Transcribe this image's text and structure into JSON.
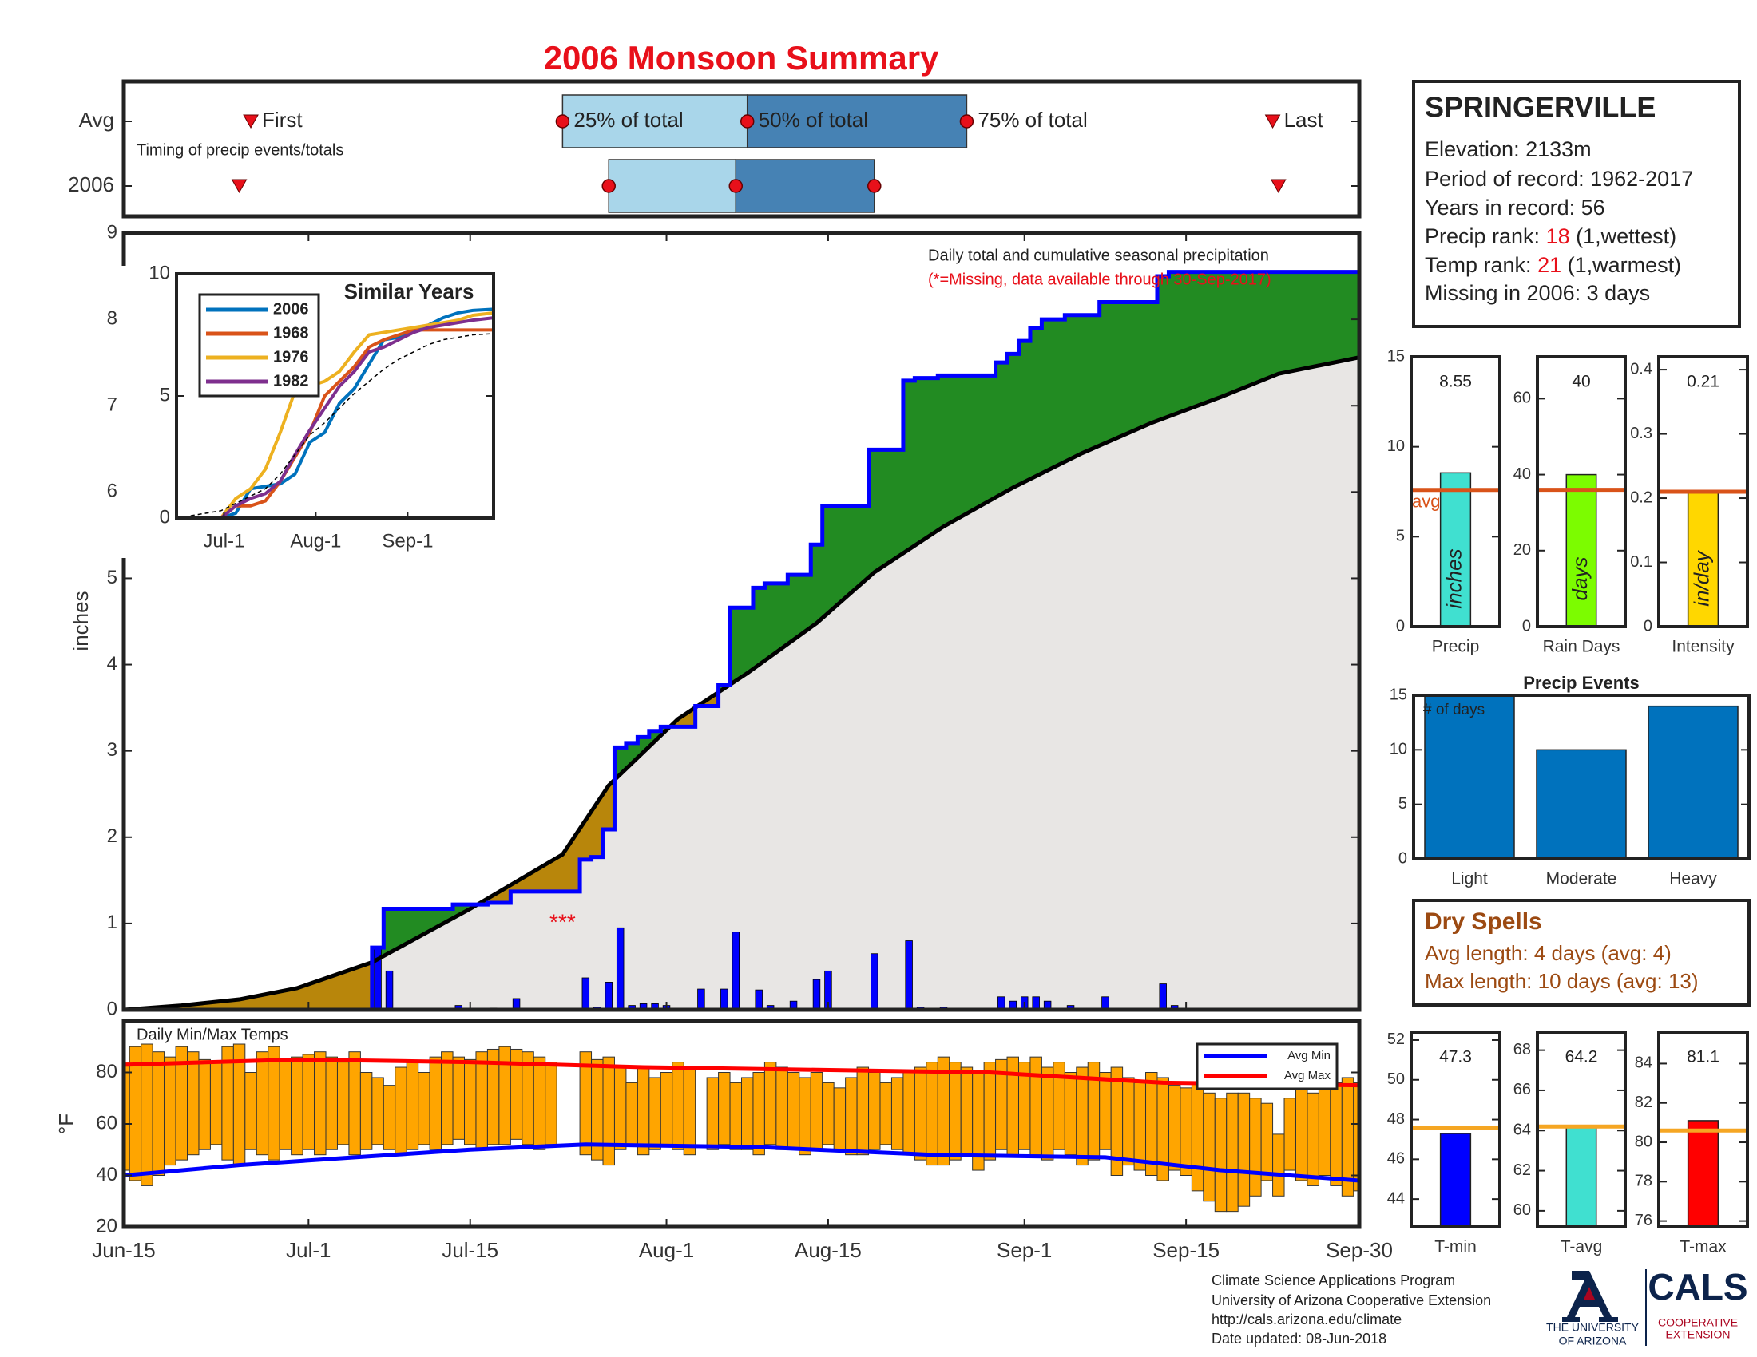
{
  "title": "2006 Monsoon Summary",
  "chart_data": [
    {
      "type": "timing",
      "note": "Timing of precip events/totals",
      "xlim": [
        0,
        107
      ],
      "labels": {
        "first": "First",
        "p25": "25% of total",
        "p50": "50% of total",
        "p75": "75% of total",
        "last": "Last"
      },
      "rows": [
        {
          "name": "Avg",
          "first": 11,
          "p25": 38,
          "p50": 54,
          "p75": 73,
          "last": 99.5
        },
        {
          "name": "2006",
          "first": 10,
          "p25": 42,
          "p50": 53,
          "p75": 65,
          "last": 100
        }
      ]
    },
    {
      "type": "cumulative",
      "title": "Daily total and cumulative seasonal precipitation",
      "note": "(*=Missing, data available through 30-Sep-2017)",
      "missing": "***",
      "missing_x": 38,
      "ylabel": "inches",
      "xlim": [
        0,
        107
      ],
      "ylim": [
        0,
        9
      ],
      "yticks": [
        0,
        1,
        2,
        3,
        4,
        5,
        6,
        7,
        8,
        9
      ],
      "daily": {
        "color": "#0000ff",
        "x": [
          22,
          23,
          29,
          32,
          34,
          40,
          41,
          42,
          43,
          44,
          45,
          46,
          47,
          50,
          52,
          53,
          55,
          56,
          58,
          60,
          61,
          65,
          68,
          69,
          71,
          76,
          77,
          78,
          79,
          80,
          82,
          85,
          90,
          91
        ],
        "values": [
          0.72,
          0.45,
          0.05,
          0.02,
          0.13,
          0.37,
          0.03,
          0.32,
          0.95,
          0.05,
          0.07,
          0.07,
          0.05,
          0.24,
          0.24,
          0.9,
          0.23,
          0.05,
          0.1,
          0.35,
          0.45,
          0.65,
          0.8,
          0.03,
          0.03,
          0.15,
          0.1,
          0.15,
          0.15,
          0.1,
          0.05,
          0.15,
          0.3,
          0.05
        ]
      },
      "average": {
        "color": "#000000",
        "x": [
          0,
          5,
          10,
          15,
          21.5,
          30,
          38,
          42,
          48,
          54,
          60,
          65,
          71,
          77,
          83,
          89,
          95,
          100,
          107
        ],
        "values": [
          0,
          0.05,
          0.12,
          0.25,
          0.55,
          1.17,
          1.8,
          2.6,
          3.37,
          3.9,
          4.48,
          5.07,
          5.6,
          6.05,
          6.45,
          6.8,
          7.1,
          7.37,
          7.56
        ]
      },
      "above_color": "#228b22",
      "below_color": "#b8860b",
      "base_color": "#e8e6e4"
    },
    {
      "type": "line",
      "title": "Similar Years",
      "xlim": [
        0,
        107
      ],
      "ylim": [
        0,
        10
      ],
      "yticks": [
        0,
        5,
        10
      ],
      "xticks": [
        {
          "value": 16,
          "label": "Jul-1"
        },
        {
          "value": 47,
          "label": "Aug-1"
        },
        {
          "value": 78,
          "label": "Sep-1"
        }
      ],
      "x": [
        0,
        15,
        20,
        25,
        30,
        35,
        40,
        45,
        50,
        55,
        60,
        65,
        70,
        75,
        80,
        85,
        90,
        95,
        100,
        107
      ],
      "series": [
        {
          "name": "2006",
          "color": "#0072bd",
          "values": [
            0,
            0,
            0.2,
            1.2,
            1.3,
            1.4,
            1.8,
            3.1,
            3.5,
            4.7,
            5.3,
            6.3,
            7.3,
            7.4,
            7.6,
            7.9,
            8.2,
            8.4,
            8.5,
            8.55
          ]
        },
        {
          "name": "1968",
          "color": "#d95319",
          "values": [
            0,
            0,
            0.5,
            0.5,
            0.7,
            1.5,
            2.5,
            3.5,
            5.0,
            5.6,
            6.2,
            7.0,
            7.3,
            7.5,
            7.7,
            7.7,
            7.7,
            7.7,
            7.7,
            7.7
          ]
        },
        {
          "name": "1976",
          "color": "#edb120",
          "values": [
            0,
            0,
            0.8,
            1.2,
            2.0,
            3.5,
            5.2,
            5.4,
            5.6,
            6.0,
            6.8,
            7.5,
            7.6,
            7.7,
            7.8,
            7.9,
            8.0,
            8.1,
            8.3,
            8.4
          ]
        },
        {
          "name": "1982",
          "color": "#7e2f8e",
          "values": [
            0,
            0,
            0.5,
            0.8,
            1.0,
            1.5,
            2.6,
            3.6,
            4.5,
            5.4,
            6.0,
            6.8,
            7.0,
            7.3,
            7.6,
            7.8,
            7.9,
            8.0,
            8.1,
            8.2
          ]
        },
        {
          "color": "#000000",
          "dash": true,
          "values": [
            0,
            0.3,
            0.6,
            0.9,
            1.2,
            1.8,
            2.6,
            3.4,
            3.9,
            4.5,
            5.1,
            5.6,
            6.1,
            6.5,
            6.8,
            7.1,
            7.3,
            7.4,
            7.5,
            7.55
          ]
        }
      ]
    },
    {
      "type": "temps",
      "title": "Daily Min/Max Temps",
      "ylabel": "°F",
      "xlim": [
        0,
        107
      ],
      "ylim": [
        20,
        100
      ],
      "yticks": [
        20,
        40,
        60,
        80
      ],
      "xticks": [
        {
          "value": 0,
          "label": "Jun-15"
        },
        {
          "value": 16,
          "label": "Jul-1"
        },
        {
          "value": 30,
          "label": "Jul-15"
        },
        {
          "value": 47,
          "label": "Aug-1"
        },
        {
          "value": 61,
          "label": "Aug-15"
        },
        {
          "value": 78,
          "label": "Sep-1"
        },
        {
          "value": 92,
          "label": "Sep-15"
        },
        {
          "value": 107,
          "label": "Sep-30"
        }
      ],
      "color": "#ffa500",
      "x": [
        0,
        1,
        2,
        3,
        4,
        5,
        6,
        7,
        8,
        9,
        10,
        11,
        12,
        13,
        14,
        15,
        16,
        17,
        18,
        19,
        20,
        21,
        22,
        23,
        24,
        25,
        26,
        27,
        28,
        29,
        30,
        31,
        32,
        33,
        34,
        35,
        36,
        37,
        38,
        39,
        40,
        41,
        42,
        43,
        44,
        45,
        46,
        47,
        48,
        49,
        50,
        51,
        52,
        53,
        54,
        55,
        56,
        57,
        58,
        59,
        60,
        61,
        62,
        63,
        64,
        65,
        66,
        67,
        68,
        69,
        70,
        71,
        72,
        73,
        74,
        75,
        76,
        77,
        78,
        79,
        80,
        81,
        82,
        83,
        84,
        85,
        86,
        87,
        88,
        89,
        90,
        91,
        92,
        93,
        94,
        95,
        96,
        97,
        98,
        99,
        100,
        101,
        102,
        103,
        104,
        105,
        106,
        107
      ],
      "max": [
        84,
        90,
        91,
        88,
        86,
        90,
        88,
        85,
        84,
        90,
        91,
        80,
        88,
        90,
        85,
        86,
        87,
        88,
        86,
        84,
        88,
        80,
        78,
        75,
        82,
        84,
        80,
        86,
        88,
        86,
        85,
        88,
        89,
        90,
        89,
        88,
        86,
        84,
        null,
        null,
        88,
        85,
        86,
        82,
        76,
        82,
        78,
        80,
        84,
        82,
        null,
        78,
        80,
        76,
        78,
        80,
        84,
        82,
        80,
        78,
        80,
        76,
        74,
        78,
        82,
        80,
        76,
        78,
        80,
        82,
        84,
        86,
        84,
        82,
        80,
        84,
        85,
        86,
        84,
        86,
        82,
        84,
        80,
        82,
        84,
        80,
        82,
        78,
        76,
        80,
        78,
        75,
        74,
        76,
        72,
        70,
        72,
        72,
        70,
        68,
        56,
        70,
        74,
        72,
        74,
        76,
        78,
        76
      ],
      "min": [
        42,
        38,
        36,
        40,
        44,
        46,
        48,
        50,
        52,
        46,
        44,
        50,
        48,
        46,
        50,
        48,
        50,
        48,
        50,
        52,
        48,
        50,
        52,
        50,
        48,
        50,
        52,
        50,
        52,
        54,
        52,
        50,
        52,
        52,
        54,
        52,
        50,
        52,
        null,
        null,
        48,
        46,
        44,
        50,
        52,
        48,
        50,
        52,
        50,
        48,
        null,
        50,
        52,
        50,
        50,
        48,
        52,
        50,
        50,
        48,
        50,
        52,
        50,
        48,
        48,
        50,
        52,
        50,
        48,
        46,
        44,
        44,
        46,
        48,
        42,
        46,
        50,
        48,
        50,
        48,
        46,
        50,
        48,
        44,
        46,
        50,
        40,
        44,
        42,
        40,
        38,
        42,
        40,
        34,
        30,
        26,
        26,
        28,
        32,
        38,
        32,
        42,
        38,
        36,
        40,
        36,
        32,
        34
      ],
      "series": [
        {
          "name": "Avg Min",
          "color": "#0000ff",
          "x": [
            0,
            10,
            20,
            30,
            40,
            55,
            70,
            85,
            95,
            107
          ],
          "values": [
            40,
            44,
            47,
            50,
            52,
            51,
            48,
            47,
            42,
            38
          ]
        },
        {
          "name": "Avg Max",
          "color": "#ff0000",
          "x": [
            0,
            15,
            30,
            45,
            60,
            75,
            90,
            107
          ],
          "values": [
            83,
            85,
            84,
            82,
            81,
            80,
            76,
            75
          ]
        }
      ]
    },
    {
      "type": "single_bar",
      "value": 8.55,
      "avg": 7.6,
      "avg_label": "avg",
      "avg_color": "#d95319",
      "unit": "inches",
      "xlabel": "Precip",
      "color": "#40e0d0",
      "ylim": [
        0,
        15
      ],
      "yticks": [
        0,
        5,
        10,
        15
      ]
    },
    {
      "type": "single_bar",
      "value": 40,
      "avg": 36,
      "avg_color": "#d95319",
      "unit": "days",
      "xlabel": "Rain Days",
      "color": "#7cfc00",
      "ylim": [
        0,
        71
      ],
      "yticks": [
        0,
        20,
        40,
        60
      ]
    },
    {
      "type": "single_bar",
      "value": 0.21,
      "avg": 0.21,
      "avg_color": "#d95319",
      "unit": "in/day",
      "xlabel": "Intensity",
      "color": "#ffd700",
      "ylim": [
        0,
        0.42
      ],
      "yticks": [
        0,
        0.1,
        0.2,
        0.3,
        0.4
      ]
    },
    {
      "type": "bar",
      "title": "Precip Events",
      "note": "# of days",
      "categories": [
        "Light",
        "Moderate",
        "Heavy"
      ],
      "values": [
        15,
        10,
        14
      ],
      "color": "#0072bd",
      "ylim": [
        0,
        15
      ],
      "yticks": [
        0,
        5,
        10,
        15
      ]
    },
    {
      "type": "single_bar",
      "value": 47.3,
      "avg": 47.6,
      "avg_color": "#f5a623",
      "xlabel": "T-min",
      "color": "#0000ff",
      "ylim": [
        42.6,
        52.4
      ],
      "yticks": [
        44,
        46,
        48,
        50,
        52
      ]
    },
    {
      "type": "single_bar",
      "value": 64.2,
      "avg": 64.2,
      "avg_color": "#f5a623",
      "xlabel": "T-avg",
      "color": "#40e0d0",
      "ylim": [
        59.2,
        68.9
      ],
      "yticks": [
        60,
        62,
        64,
        66,
        68
      ]
    },
    {
      "type": "single_bar",
      "value": 81.1,
      "avg": 80.6,
      "avg_color": "#f5a623",
      "xlabel": "T-max",
      "color": "#ff0000",
      "ylim": [
        75.7,
        85.6
      ],
      "yticks": [
        76,
        78,
        80,
        82,
        84
      ]
    }
  ],
  "station": {
    "name": "SPRINGERVILLE",
    "lines": [
      [
        "Elevation: 2133m"
      ],
      [
        "Period of record: 1962-2017"
      ],
      [
        "Years in record: 56"
      ],
      [
        "Precip rank: ",
        "18",
        " (1,wettest)"
      ],
      [
        "Temp rank: ",
        "21",
        " (1,warmest)"
      ],
      [
        "Missing in 2006: 3 days"
      ]
    ]
  },
  "dry_spells": {
    "title": "Dry Spells",
    "lines": [
      "Avg length: 4 days (avg: 4)",
      "Max length: 10 days (avg: 13)"
    ]
  },
  "footer": [
    "Climate Science Applications Program",
    "University of Arizona Cooperative Extension",
    "http://cals.arizona.edu/climate",
    " Date updated: 08-Jun-2018"
  ],
  "logos": {
    "university": [
      "THE UNIVERSITY",
      "OF ARIZONA"
    ],
    "cals": "CALS",
    "extension": [
      "COOPERATIVE",
      "EXTENSION"
    ]
  }
}
